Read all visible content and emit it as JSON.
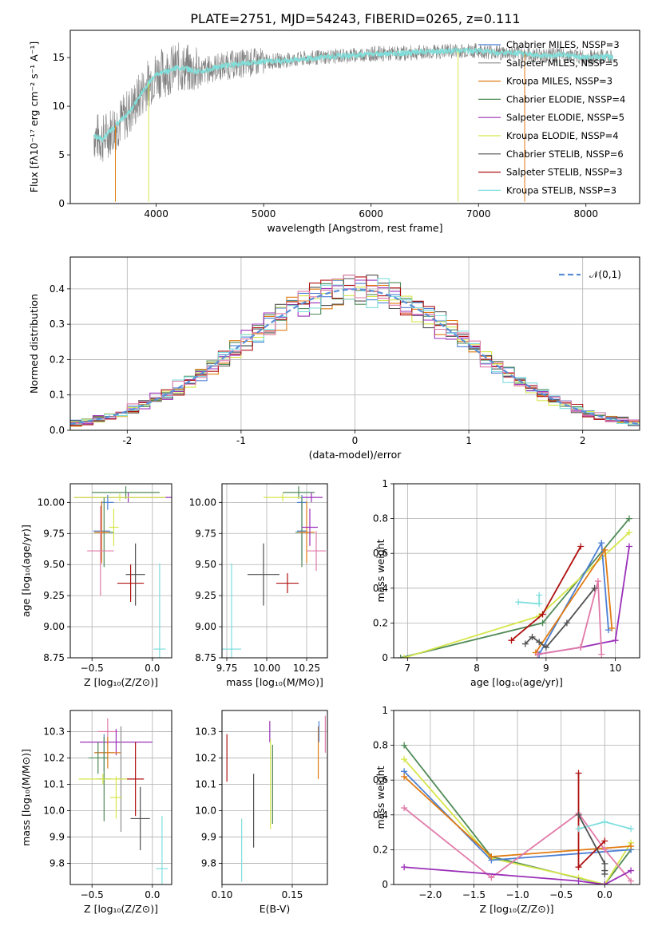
{
  "title": "PLATE=2751, MJD=54243, FIBERID=0265, z=0.111",
  "colors": {
    "data": "#7f7f7f",
    "chab_miles": "#4a7fd4",
    "salp_miles": "#8c8c8c",
    "krou_miles": "#e07b12",
    "chab_elodie": "#4f8a56",
    "salp_elodie": "#9a2fb8",
    "krou_elodie": "#d6e64a",
    "chab_stelib": "#505050",
    "salp_stelib": "#b01010",
    "krou_stelib": "#7fdede",
    "pink": "#e07aa8",
    "normal": "#5a8fd8"
  },
  "chart_data": [
    {
      "id": "spectrum",
      "type": "line",
      "xlabel": "wavelength [Angstrom, rest frame]",
      "ylabel": "Flux [fλ10⁻¹⁷ erg cm⁻² s⁻¹ A⁻¹]",
      "xlim": [
        3200,
        8500
      ],
      "ylim": [
        0,
        17.8
      ],
      "xticks": [
        4000,
        5000,
        6000,
        7000,
        8000
      ],
      "yticks": [
        0,
        5,
        10,
        15
      ],
      "legend": "top-right",
      "legend_entries": [
        {
          "label": "Chabrier MILES, NSSP=3",
          "color_key": "chab_miles"
        },
        {
          "label": "Salpeter MILES, NSSP=5",
          "color_key": "salp_miles"
        },
        {
          "label": "Kroupa MILES, NSSP=3",
          "color_key": "krou_miles"
        },
        {
          "label": "Chabrier ELODIE, NSSP=4",
          "color_key": "chab_elodie"
        },
        {
          "label": "Salpeter ELODIE, NSSP=5",
          "color_key": "salp_elodie"
        },
        {
          "label": "Kroupa ELODIE, NSSP=4",
          "color_key": "krou_elodie"
        },
        {
          "label": "Chabrier STELIB, NSSP=6",
          "color_key": "chab_stelib"
        },
        {
          "label": "Salpeter STELIB, NSSP=3",
          "color_key": "salp_stelib"
        },
        {
          "label": "Kroupa STELIB, NSSP=3",
          "color_key": "krou_stelib"
        }
      ],
      "continuum": [
        [
          3420,
          7.0
        ],
        [
          3500,
          6.6
        ],
        [
          3600,
          7.8
        ],
        [
          3700,
          8.8
        ],
        [
          3800,
          10.2
        ],
        [
          3900,
          12.0
        ],
        [
          4000,
          13.3
        ],
        [
          4100,
          13.6
        ],
        [
          4200,
          14.0
        ],
        [
          4300,
          13.8
        ],
        [
          4400,
          13.5
        ],
        [
          4600,
          14.1
        ],
        [
          4800,
          14.4
        ],
        [
          5000,
          14.6
        ],
        [
          5200,
          14.7
        ],
        [
          5400,
          14.9
        ],
        [
          5600,
          15.1
        ],
        [
          5800,
          15.2
        ],
        [
          6000,
          15.4
        ],
        [
          6200,
          15.4
        ],
        [
          6400,
          15.5
        ],
        [
          6600,
          15.6
        ],
        [
          6800,
          15.7
        ],
        [
          7000,
          15.7
        ],
        [
          7200,
          15.5
        ],
        [
          7400,
          15.4
        ],
        [
          7600,
          15.2
        ],
        [
          7800,
          15.3
        ],
        [
          8000,
          15.0
        ],
        [
          8200,
          15.1
        ],
        [
          8250,
          15.0
        ]
      ],
      "dips": [
        {
          "x": 3620,
          "y": 0.2,
          "color_key": "krou_miles"
        },
        {
          "x": 3930,
          "y": 0.2,
          "color_key": "krou_elodie"
        },
        {
          "x": 6810,
          "y": 0.2,
          "color_key": "krou_elodie"
        },
        {
          "x": 7430,
          "y": 0.2,
          "color_key": "krou_miles"
        }
      ]
    },
    {
      "id": "residuals",
      "type": "bar",
      "xlabel": "(data-model)/error",
      "ylabel": "Normed distribution",
      "xlim": [
        -2.5,
        2.5
      ],
      "ylim": [
        0,
        0.49
      ],
      "xticks": [
        -2,
        -1,
        0,
        1,
        2
      ],
      "yticks": [
        0.0,
        0.1,
        0.2,
        0.3,
        0.4
      ],
      "legend_label": "𝒩(0,1)",
      "bin_width": 0.1,
      "overlay": {
        "type": "line",
        "function": "normal",
        "mean": 0,
        "sigma": 1
      }
    },
    {
      "id": "age-vs-Z",
      "type": "scatter",
      "xlabel": "Z [log₁₀(Z/Z⊙)]",
      "ylabel": "age  [log₁₀(age/yr)]",
      "xlim": [
        -0.68,
        0.16
      ],
      "ylim": [
        8.75,
        10.15
      ],
      "xticks": [
        -0.5,
        0.0
      ],
      "xticklabels": [
        "−0.5",
        "0.0"
      ],
      "yticks": [
        8.75,
        9.0,
        9.25,
        9.5,
        9.75,
        10.0
      ],
      "yticklabels": [
        "8.75",
        "9.00",
        "9.25",
        "9.50",
        "9.75",
        "10.00"
      ],
      "points": [
        {
          "x": -0.22,
          "y": 10.08,
          "xerr": 0.28,
          "yerr": 0.05,
          "color_key": "chab_elodie"
        },
        {
          "x": -0.2,
          "y": 10.04,
          "xerr": 0.45,
          "yerr": 0.04,
          "color_key": "salp_elodie"
        },
        {
          "x": -0.27,
          "y": 10.04,
          "xerr": 0.38,
          "yerr": 0.03,
          "color_key": "krou_elodie"
        },
        {
          "x": -0.37,
          "y": 10.0,
          "xerr": 0.05,
          "yerr": 0.06,
          "color_key": "chab_miles"
        },
        {
          "x": -0.42,
          "y": 9.77,
          "xerr": 0.07,
          "yerr": 0.23,
          "color_key": "chab_miles"
        },
        {
          "x": -0.4,
          "y": 9.76,
          "xerr": 0.08,
          "yerr": 0.28,
          "color_key": "chab_elodie"
        },
        {
          "x": -0.42,
          "y": 9.76,
          "xerr": 0.06,
          "yerr": 0.25,
          "color_key": "krou_miles"
        },
        {
          "x": -0.32,
          "y": 9.8,
          "xerr": 0.04,
          "yerr": 0.15,
          "color_key": "krou_elodie"
        },
        {
          "x": -0.43,
          "y": 9.61,
          "xerr": 0.11,
          "yerr": 0.36,
          "color_key": "pink"
        },
        {
          "x": -0.14,
          "y": 9.42,
          "xerr": 0.08,
          "yerr": 0.25,
          "color_key": "chab_stelib"
        },
        {
          "x": -0.18,
          "y": 9.35,
          "xerr": 0.11,
          "yerr": 0.15,
          "color_key": "salp_stelib"
        },
        {
          "x": 0.06,
          "y": 8.82,
          "xerr": 0.05,
          "yerr": 0.69,
          "color_key": "krou_stelib"
        }
      ]
    },
    {
      "id": "age-vs-mass",
      "type": "scatter",
      "xlabel": "mass [log₁₀(M/M⊙)]",
      "ylabel": "",
      "xlim": [
        9.72,
        10.38
      ],
      "ylim": [
        8.75,
        10.15
      ],
      "xticks": [
        9.75,
        10.0,
        10.25
      ],
      "xticklabels": [
        "9.75",
        "10.00",
        "10.25"
      ],
      "yticks": [
        8.75,
        9.0,
        9.25,
        9.5,
        9.75,
        10.0
      ],
      "yticklabels": [
        "8.75",
        "9.00",
        "9.25",
        "9.50",
        "9.75",
        "10.00"
      ],
      "points": [
        {
          "x": 10.2,
          "y": 10.08,
          "xerr": 0.1,
          "yerr": 0.05,
          "color_key": "chab_elodie"
        },
        {
          "x": 10.28,
          "y": 10.04,
          "xerr": 0.07,
          "yerr": 0.04,
          "color_key": "salp_elodie"
        },
        {
          "x": 10.1,
          "y": 10.04,
          "xerr": 0.12,
          "yerr": 0.03,
          "color_key": "krou_elodie"
        },
        {
          "x": 10.22,
          "y": 10.0,
          "xerr": 0.03,
          "yerr": 0.06,
          "color_key": "chab_miles"
        },
        {
          "x": 10.22,
          "y": 9.77,
          "xerr": 0.03,
          "yerr": 0.23,
          "color_key": "chab_miles"
        },
        {
          "x": 10.22,
          "y": 9.76,
          "xerr": 0.04,
          "yerr": 0.28,
          "color_key": "chab_elodie"
        },
        {
          "x": 10.25,
          "y": 9.76,
          "xerr": 0.05,
          "yerr": 0.25,
          "color_key": "krou_miles"
        },
        {
          "x": 10.27,
          "y": 9.8,
          "xerr": 0.05,
          "yerr": 0.15,
          "color_key": "salp_elodie"
        },
        {
          "x": 10.31,
          "y": 9.61,
          "xerr": 0.06,
          "yerr": 0.16,
          "color_key": "pink"
        },
        {
          "x": 9.98,
          "y": 9.42,
          "xerr": 0.1,
          "yerr": 0.25,
          "color_key": "chab_stelib"
        },
        {
          "x": 10.13,
          "y": 9.35,
          "xerr": 0.07,
          "yerr": 0.08,
          "color_key": "salp_stelib"
        },
        {
          "x": 9.78,
          "y": 8.82,
          "xerr": 0.06,
          "yerr": 0.69,
          "color_key": "krou_stelib"
        }
      ]
    },
    {
      "id": "weight-vs-age",
      "type": "line",
      "xlabel": "age  [log₁₀(age/yr)]",
      "ylabel": "mass weight",
      "xlim": [
        6.8,
        10.35
      ],
      "ylim": [
        0,
        1.0
      ],
      "xticks": [
        7,
        8,
        9,
        10
      ],
      "yticks": [
        0.0,
        0.2,
        0.4,
        0.6,
        0.8,
        1.0
      ],
      "series": [
        {
          "color_key": "chab_elodie",
          "x": [
            6.9,
            8.95,
            10.2
          ],
          "y": [
            0.0,
            0.2,
            0.8
          ]
        },
        {
          "color_key": "krou_elodie",
          "x": [
            6.95,
            8.9,
            10.2
          ],
          "y": [
            0.0,
            0.24,
            0.72
          ]
        },
        {
          "color_key": "chab_miles",
          "x": [
            8.9,
            9.8,
            9.9
          ],
          "y": [
            0.02,
            0.66,
            0.16
          ]
        },
        {
          "color_key": "krou_miles",
          "x": [
            8.85,
            9.85,
            9.95
          ],
          "y": [
            0.03,
            0.62,
            0.17
          ]
        },
        {
          "color_key": "salp_stelib",
          "x": [
            8.5,
            8.95,
            9.5
          ],
          "y": [
            0.1,
            0.25,
            0.64
          ]
        },
        {
          "color_key": "salp_elodie",
          "x": [
            8.88,
            9.5,
            10.0,
            10.2
          ],
          "y": [
            0.02,
            0.06,
            0.1,
            0.64
          ]
        },
        {
          "color_key": "pink",
          "x": [
            8.88,
            9.5,
            9.75,
            9.8
          ],
          "y": [
            0.02,
            0.06,
            0.44,
            0.02
          ]
        },
        {
          "color_key": "krou_stelib",
          "x": [
            8.6,
            8.9,
            8.9
          ],
          "y": [
            0.32,
            0.31,
            0.36
          ]
        },
        {
          "color_key": "chab_stelib",
          "x": [
            8.7,
            8.8,
            8.9,
            9.0,
            9.3,
            9.7
          ],
          "y": [
            0.08,
            0.12,
            0.09,
            0.06,
            0.2,
            0.4
          ]
        }
      ]
    },
    {
      "id": "mass-vs-Z",
      "type": "scatter",
      "xlabel": "Z [log₁₀(Z/Z⊙)]",
      "ylabel": "mass [log₁₀(M/M⊙)]",
      "xlim": [
        -0.68,
        0.16
      ],
      "ylim": [
        9.72,
        10.38
      ],
      "xticks": [
        -0.5,
        0.0
      ],
      "xticklabels": [
        "−0.5",
        "0.0"
      ],
      "yticks": [
        9.8,
        9.9,
        10.0,
        10.1,
        10.2,
        10.3
      ],
      "yticklabels": [
        "9.8",
        "9.9",
        "10.0",
        "10.1",
        "10.2",
        "10.3"
      ],
      "points": [
        {
          "x": -0.37,
          "y": 10.3,
          "xerr": 0.08,
          "yerr": 0.05,
          "color_key": "pink"
        },
        {
          "x": -0.3,
          "y": 10.26,
          "xerr": 0.3,
          "yerr": 0.05,
          "color_key": "salp_elodie"
        },
        {
          "x": -0.4,
          "y": 10.22,
          "xerr": 0.08,
          "yerr": 0.07,
          "color_key": "chab_miles"
        },
        {
          "x": -0.37,
          "y": 10.22,
          "xerr": 0.11,
          "yerr": 0.06,
          "color_key": "krou_miles"
        },
        {
          "x": -0.45,
          "y": 10.2,
          "xerr": 0.08,
          "yerr": 0.06,
          "color_key": "chab_elodie"
        },
        {
          "x": -0.26,
          "y": 10.12,
          "xerr": 0.04,
          "yerr": 0.2,
          "color_key": "salp_miles"
        },
        {
          "x": -0.4,
          "y": 10.12,
          "xerr": 0.06,
          "yerr": 0.16,
          "color_key": "chab_elodie"
        },
        {
          "x": -0.41,
          "y": 10.12,
          "xerr": 0.2,
          "yerr": 0.02,
          "color_key": "krou_elodie"
        },
        {
          "x": -0.14,
          "y": 10.12,
          "xerr": 0.07,
          "yerr": 0.14,
          "color_key": "salp_stelib"
        },
        {
          "x": -0.3,
          "y": 10.05,
          "xerr": 0.05,
          "yerr": 0.08,
          "color_key": "krou_elodie"
        },
        {
          "x": -0.1,
          "y": 9.97,
          "xerr": 0.08,
          "yerr": 0.12,
          "color_key": "chab_stelib"
        },
        {
          "x": 0.08,
          "y": 9.78,
          "xerr": 0.05,
          "yerr": 0.2,
          "color_key": "krou_stelib"
        }
      ]
    },
    {
      "id": "mass-vs-EBV",
      "type": "scatter",
      "xlabel": "E(B-V)",
      "ylabel": "",
      "xlim": [
        0.1,
        0.175
      ],
      "ylim": [
        9.72,
        10.38
      ],
      "xticks": [
        0.1,
        0.15
      ],
      "xticklabels": [
        "0.10",
        "0.15"
      ],
      "yticks": [
        9.8,
        9.9,
        10.0,
        10.1,
        10.2,
        10.3
      ],
      "yticklabels": [
        "9.8",
        "9.9",
        "10.0",
        "10.1",
        "10.2",
        "10.3"
      ],
      "points": [
        {
          "x": 0.1035,
          "y": 10.2,
          "yerr": 0.09,
          "color_key": "salp_stelib"
        },
        {
          "x": 0.114,
          "y": 9.85,
          "yerr": 0.12,
          "color_key": "krou_stelib"
        },
        {
          "x": 0.1225,
          "y": 10.0,
          "yerr": 0.14,
          "color_key": "chab_stelib"
        },
        {
          "x": 0.134,
          "y": 10.3,
          "yerr": 0.04,
          "color_key": "salp_elodie"
        },
        {
          "x": 0.1345,
          "y": 10.1,
          "yerr": 0.17,
          "color_key": "krou_elodie"
        },
        {
          "x": 0.136,
          "y": 10.1,
          "yerr": 0.15,
          "color_key": "chab_elodie"
        },
        {
          "x": 0.1685,
          "y": 10.22,
          "yerr": 0.1,
          "color_key": "krou_miles"
        },
        {
          "x": 0.169,
          "y": 10.3,
          "yerr": 0.04,
          "color_key": "chab_miles"
        },
        {
          "x": 0.1735,
          "y": 10.29,
          "yerr": 0.07,
          "color_key": "pink"
        }
      ]
    },
    {
      "id": "weight-vs-Z",
      "type": "line",
      "xlabel": "Z [log₁₀(Z/Z⊙)]",
      "ylabel": "mass weight",
      "xlim": [
        -2.42,
        0.4
      ],
      "ylim": [
        0,
        1.0
      ],
      "xticks": [
        -2.0,
        -1.5,
        -1.0,
        -0.5,
        0.0
      ],
      "xticklabels": [
        "−2.0",
        "−1.5",
        "−1.0",
        "−0.5",
        "0.0"
      ],
      "yticks": [
        0.0,
        0.2,
        0.4,
        0.6,
        0.8,
        1.0
      ],
      "series": [
        {
          "color_key": "chab_elodie",
          "x": [
            -2.3,
            -1.3,
            0.0,
            0.3
          ],
          "y": [
            0.8,
            0.16,
            0.0,
            0.2
          ]
        },
        {
          "color_key": "krou_elodie",
          "x": [
            -2.3,
            -1.3,
            -0.3,
            0.0,
            0.3
          ],
          "y": [
            0.72,
            0.15,
            0.04,
            0.0,
            0.24
          ]
        },
        {
          "color_key": "chab_miles",
          "x": [
            -2.3,
            -1.3,
            0.3
          ],
          "y": [
            0.65,
            0.14,
            0.2
          ]
        },
        {
          "color_key": "krou_miles",
          "x": [
            -2.3,
            -1.3,
            0.3
          ],
          "y": [
            0.62,
            0.16,
            0.22
          ]
        },
        {
          "color_key": "pink",
          "x": [
            -2.3,
            -1.3,
            -0.3,
            0.0,
            0.3
          ],
          "y": [
            0.44,
            0.04,
            0.41,
            0.2,
            0.02
          ]
        },
        {
          "color_key": "salp_elodie",
          "x": [
            -2.3,
            -0.3,
            0.0,
            0.3
          ],
          "y": [
            0.1,
            0.02,
            0.0,
            0.08
          ]
        },
        {
          "color_key": "salp_stelib",
          "x": [
            -0.3,
            -0.3,
            0.0
          ],
          "y": [
            0.64,
            0.1,
            0.25
          ]
        },
        {
          "color_key": "krou_stelib",
          "x": [
            -0.3,
            0.0,
            0.3
          ],
          "y": [
            0.32,
            0.36,
            0.32
          ]
        },
        {
          "color_key": "chab_stelib",
          "x": [
            -0.3,
            0.0,
            0.0,
            0.0
          ],
          "y": [
            0.4,
            0.12,
            0.08,
            0.06
          ]
        }
      ]
    }
  ]
}
